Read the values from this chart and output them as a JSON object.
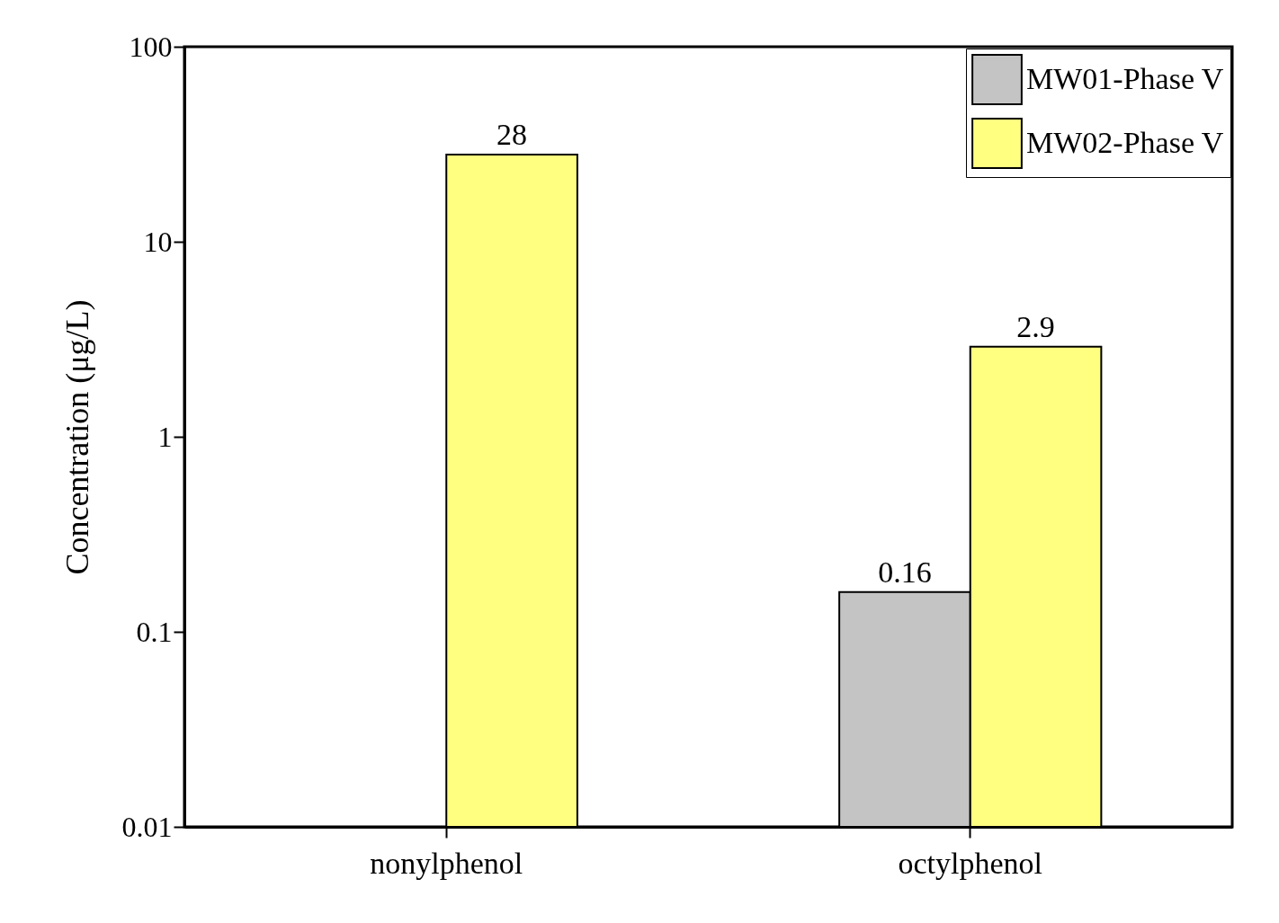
{
  "chart_data": {
    "type": "bar",
    "ylabel": "Concentration (μg/L)",
    "categories": [
      "nonylphenol",
      "octylphenol"
    ],
    "series": [
      {
        "name": "MW01-Phase V",
        "color": "#c4c4c4",
        "values": [
          null,
          0.16
        ]
      },
      {
        "name": "MW02-Phase V",
        "color": "#ffff80",
        "values": [
          28,
          2.9
        ]
      }
    ],
    "log": true,
    "ylim": [
      0.01,
      100
    ],
    "yticks": [
      0.01,
      0.1,
      1,
      10,
      100
    ],
    "data_labels": true,
    "legend": "top right",
    "grid": false
  }
}
